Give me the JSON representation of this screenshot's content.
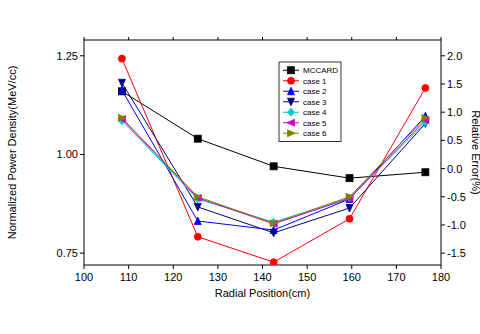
{
  "chart_data": {
    "type": "line",
    "x_label": "Radial Position(cm)",
    "y_label": "Normalized Power Density(MeV/cc)",
    "y2_label": "Relative Error(%)",
    "x": [
      108.5,
      125.5,
      142.5,
      159.5,
      176.5
    ],
    "xlim": [
      100,
      180
    ],
    "xticks": [
      100,
      110,
      120,
      130,
      140,
      150,
      160,
      170,
      180
    ],
    "ylim": [
      0.72,
      1.29
    ],
    "yticks": [
      0.75,
      {
        "value": 1,
        "label": "1.00"
      },
      1.25
    ],
    "y2lim": [
      -1.71,
      2.28
    ],
    "y2ticks": [
      -1.5,
      {
        "value": -1,
        "label": "-1.0"
      },
      -0.5,
      {
        "value": 0,
        "label": "0.0"
      },
      0.5,
      {
        "value": 1,
        "label": "1.0"
      },
      1.5,
      {
        "value": 2,
        "label": "2.0"
      }
    ],
    "legend": "top-right",
    "grid": false,
    "series": [
      {
        "name": "MCCARD",
        "color": "#000000",
        "marker": "square",
        "values": [
          1.16,
          1.04,
          0.97,
          0.94,
          0.955
        ]
      },
      {
        "name": "case 1",
        "color": "#ff0000",
        "marker": "circle",
        "axis": "y2",
        "values": [
          1.95,
          -1.21,
          -1.66,
          -0.89,
          1.43
        ]
      },
      {
        "name": "case 2",
        "color": "#0000ff",
        "marker": "triangle-up",
        "axis": "y2",
        "values": [
          1.39,
          -0.93,
          -1.09,
          -0.54,
          0.93
        ]
      },
      {
        "name": "case 3",
        "color": "#000080",
        "marker": "triangle-down",
        "axis": "y2",
        "values": [
          1.52,
          -0.68,
          -1.14,
          -0.7,
          0.8
        ]
      },
      {
        "name": "case 4",
        "color": "#00cccc",
        "marker": "diamond",
        "axis": "y2",
        "values": [
          0.85,
          -0.54,
          -0.95,
          -0.52,
          0.82
        ]
      },
      {
        "name": "case 5",
        "color": "#cc00cc",
        "marker": "triangle-left",
        "axis": "y2",
        "values": [
          0.88,
          -0.52,
          -0.98,
          -0.53,
          0.86
        ]
      },
      {
        "name": "case 6",
        "color": "#808000",
        "marker": "triangle-right",
        "axis": "y2",
        "values": [
          0.9,
          -0.5,
          -0.97,
          -0.5,
          0.9
        ]
      }
    ]
  }
}
